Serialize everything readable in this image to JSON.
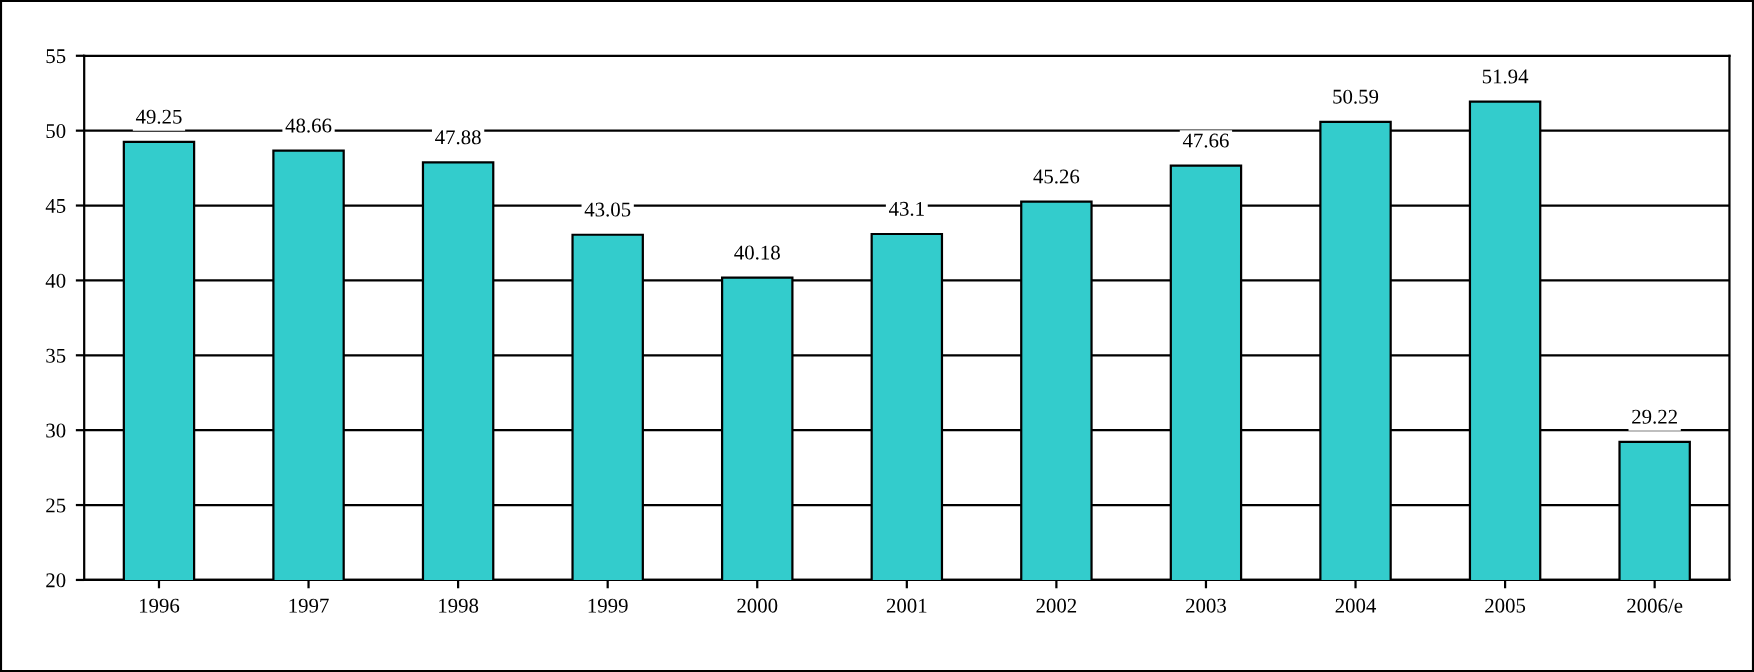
{
  "chart_data": {
    "type": "bar",
    "categories": [
      "1996",
      "1997",
      "1998",
      "1999",
      "2000",
      "2001",
      "2002",
      "2003",
      "2004",
      "2005",
      "2006/e"
    ],
    "values": [
      49.25,
      48.66,
      47.88,
      43.05,
      40.18,
      43.1,
      45.26,
      47.66,
      50.59,
      51.94,
      29.22
    ],
    "color": "#33cccc",
    "ylim": [
      20,
      55
    ],
    "yticks": [
      20,
      25,
      30,
      35,
      40,
      45,
      50,
      55
    ],
    "grid": "y",
    "data_labels": true
  }
}
